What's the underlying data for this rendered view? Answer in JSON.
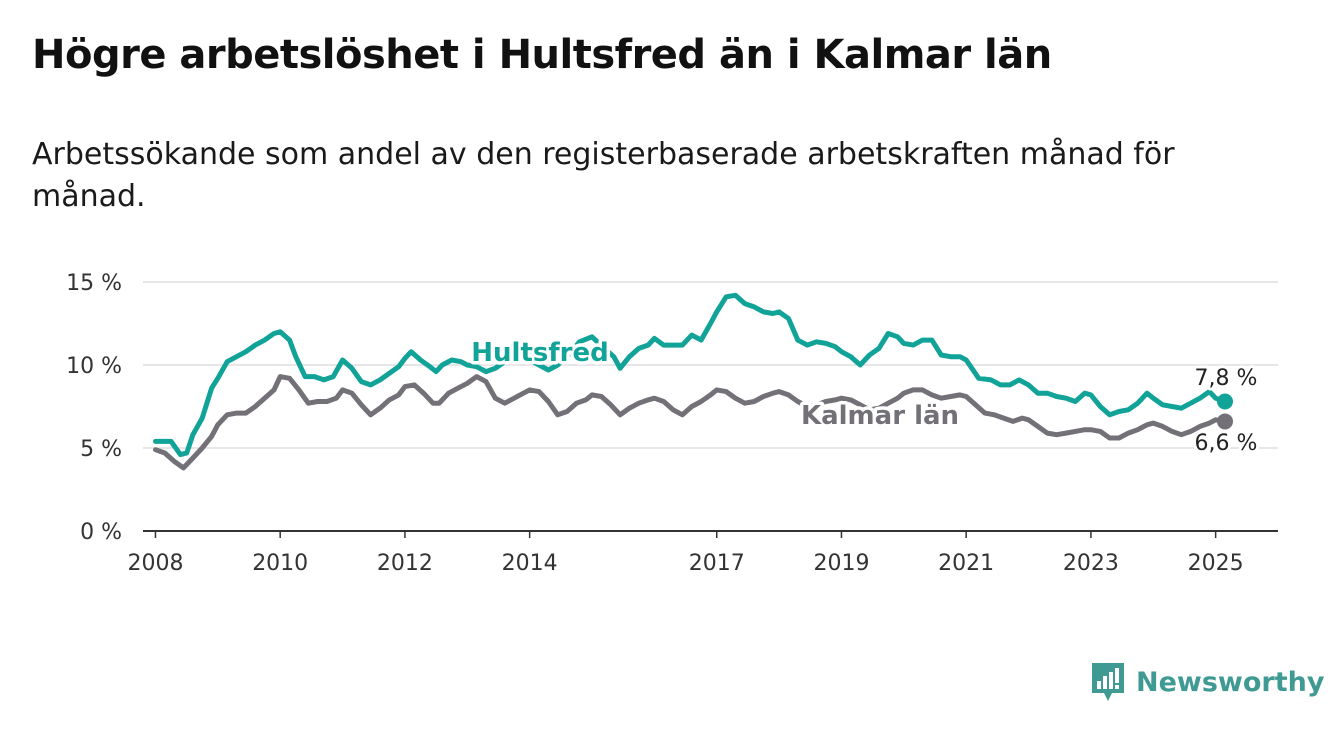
{
  "title": "Högre arbetslöshet i Hultsfred än i Kalmar län",
  "subtitle": "Arbetssökande som andel av den registerbaserade arbetskraften månad för månad.",
  "brand": {
    "name": "Newsworthy",
    "icon": "newsworthy-bar-chart-icon",
    "color": "#3f9a94"
  },
  "colors": {
    "hultsfred": "#12a398",
    "kalmar": "#737078",
    "grid": "#dddddd",
    "axis": "#333333"
  },
  "chart_data": {
    "type": "line",
    "ylim": [
      0,
      15
    ],
    "xlim": [
      2007.8,
      2026.0
    ],
    "y_ticks": [
      {
        "value": 0,
        "label": "0 %"
      },
      {
        "value": 5,
        "label": "5 %"
      },
      {
        "value": 10,
        "label": "10 %"
      },
      {
        "value": 15,
        "label": "15 %"
      }
    ],
    "x_ticks": [
      {
        "value": 2008,
        "label": "2008"
      },
      {
        "value": 2010,
        "label": "2010"
      },
      {
        "value": 2012,
        "label": "2012"
      },
      {
        "value": 2014,
        "label": "2014"
      },
      {
        "value": 2017,
        "label": "2017"
      },
      {
        "value": 2019,
        "label": "2019"
      },
      {
        "value": 2021,
        "label": "2021"
      },
      {
        "value": 2023,
        "label": "2023"
      },
      {
        "value": 2025,
        "label": "2025"
      }
    ],
    "grid": true,
    "series": [
      {
        "name": "Hultsfred",
        "color": "#12a398",
        "end_label": "7,8 %",
        "points": [
          [
            2008.0,
            5.4
          ],
          [
            2008.25,
            5.4
          ],
          [
            2008.4,
            4.6
          ],
          [
            2008.5,
            4.7
          ],
          [
            2008.6,
            5.8
          ],
          [
            2008.75,
            6.8
          ],
          [
            2008.9,
            8.6
          ],
          [
            2009.0,
            9.2
          ],
          [
            2009.15,
            10.2
          ],
          [
            2009.3,
            10.5
          ],
          [
            2009.45,
            10.8
          ],
          [
            2009.6,
            11.2
          ],
          [
            2009.75,
            11.5
          ],
          [
            2009.9,
            11.9
          ],
          [
            2010.0,
            12.0
          ],
          [
            2010.15,
            11.5
          ],
          [
            2010.25,
            10.5
          ],
          [
            2010.4,
            9.3
          ],
          [
            2010.55,
            9.3
          ],
          [
            2010.7,
            9.1
          ],
          [
            2010.85,
            9.3
          ],
          [
            2011.0,
            10.3
          ],
          [
            2011.15,
            9.8
          ],
          [
            2011.3,
            9.0
          ],
          [
            2011.45,
            8.8
          ],
          [
            2011.6,
            9.1
          ],
          [
            2011.75,
            9.5
          ],
          [
            2011.9,
            9.9
          ],
          [
            2012.0,
            10.4
          ],
          [
            2012.1,
            10.8
          ],
          [
            2012.25,
            10.3
          ],
          [
            2012.4,
            9.9
          ],
          [
            2012.5,
            9.6
          ],
          [
            2012.6,
            10.0
          ],
          [
            2012.75,
            10.3
          ],
          [
            2012.9,
            10.2
          ],
          [
            2013.0,
            10.0
          ],
          [
            2013.15,
            9.9
          ],
          [
            2013.3,
            9.6
          ],
          [
            2013.45,
            9.8
          ],
          [
            2013.6,
            10.2
          ],
          [
            2013.75,
            10.4
          ],
          [
            2013.9,
            10.6
          ],
          [
            2014.0,
            10.3
          ],
          [
            2014.15,
            10.0
          ],
          [
            2014.3,
            9.7
          ],
          [
            2014.45,
            10.0
          ],
          [
            2014.6,
            10.5
          ],
          [
            2014.8,
            11.4
          ],
          [
            2015.0,
            11.7
          ],
          [
            2015.2,
            11.0
          ],
          [
            2015.35,
            10.5
          ],
          [
            2015.45,
            9.8
          ],
          [
            2015.6,
            10.5
          ],
          [
            2015.75,
            11.0
          ],
          [
            2015.9,
            11.2
          ],
          [
            2016.0,
            11.6
          ],
          [
            2016.15,
            11.2
          ],
          [
            2016.3,
            11.2
          ],
          [
            2016.45,
            11.2
          ],
          [
            2016.6,
            11.8
          ],
          [
            2016.75,
            11.5
          ],
          [
            2016.9,
            12.5
          ],
          [
            2017.0,
            13.2
          ],
          [
            2017.15,
            14.1
          ],
          [
            2017.3,
            14.2
          ],
          [
            2017.45,
            13.7
          ],
          [
            2017.6,
            13.5
          ],
          [
            2017.75,
            13.2
          ],
          [
            2017.9,
            13.1
          ],
          [
            2018.0,
            13.2
          ],
          [
            2018.15,
            12.8
          ],
          [
            2018.3,
            11.5
          ],
          [
            2018.45,
            11.2
          ],
          [
            2018.6,
            11.4
          ],
          [
            2018.75,
            11.3
          ],
          [
            2018.9,
            11.1
          ],
          [
            2019.0,
            10.8
          ],
          [
            2019.15,
            10.5
          ],
          [
            2019.3,
            10.0
          ],
          [
            2019.45,
            10.6
          ],
          [
            2019.6,
            11.0
          ],
          [
            2019.75,
            11.9
          ],
          [
            2019.9,
            11.7
          ],
          [
            2020.0,
            11.3
          ],
          [
            2020.15,
            11.2
          ],
          [
            2020.3,
            11.5
          ],
          [
            2020.45,
            11.5
          ],
          [
            2020.6,
            10.6
          ],
          [
            2020.75,
            10.5
          ],
          [
            2020.9,
            10.5
          ],
          [
            2021.0,
            10.3
          ],
          [
            2021.2,
            9.2
          ],
          [
            2021.4,
            9.1
          ],
          [
            2021.55,
            8.8
          ],
          [
            2021.7,
            8.8
          ],
          [
            2021.85,
            9.1
          ],
          [
            2022.0,
            8.8
          ],
          [
            2022.15,
            8.3
          ],
          [
            2022.3,
            8.3
          ],
          [
            2022.45,
            8.1
          ],
          [
            2022.6,
            8.0
          ],
          [
            2022.75,
            7.8
          ],
          [
            2022.9,
            8.3
          ],
          [
            2023.0,
            8.2
          ],
          [
            2023.15,
            7.5
          ],
          [
            2023.3,
            7.0
          ],
          [
            2023.45,
            7.2
          ],
          [
            2023.6,
            7.3
          ],
          [
            2023.75,
            7.7
          ],
          [
            2023.9,
            8.3
          ],
          [
            2024.0,
            8.0
          ],
          [
            2024.15,
            7.6
          ],
          [
            2024.3,
            7.5
          ],
          [
            2024.45,
            7.4
          ],
          [
            2024.6,
            7.7
          ],
          [
            2024.75,
            8.0
          ],
          [
            2024.9,
            8.4
          ],
          [
            2025.0,
            8.0
          ],
          [
            2025.15,
            7.8
          ]
        ]
      },
      {
        "name": "Kalmar län",
        "color": "#737078",
        "end_label": "6,6 %",
        "points": [
          [
            2008.0,
            4.9
          ],
          [
            2008.15,
            4.7
          ],
          [
            2008.3,
            4.2
          ],
          [
            2008.45,
            3.8
          ],
          [
            2008.6,
            4.4
          ],
          [
            2008.75,
            5.0
          ],
          [
            2008.9,
            5.7
          ],
          [
            2009.0,
            6.4
          ],
          [
            2009.15,
            7.0
          ],
          [
            2009.3,
            7.1
          ],
          [
            2009.45,
            7.1
          ],
          [
            2009.6,
            7.5
          ],
          [
            2009.75,
            8.0
          ],
          [
            2009.9,
            8.5
          ],
          [
            2010.0,
            9.3
          ],
          [
            2010.15,
            9.2
          ],
          [
            2010.3,
            8.5
          ],
          [
            2010.45,
            7.7
          ],
          [
            2010.6,
            7.8
          ],
          [
            2010.75,
            7.8
          ],
          [
            2010.9,
            8.0
          ],
          [
            2011.0,
            8.5
          ],
          [
            2011.15,
            8.3
          ],
          [
            2011.3,
            7.6
          ],
          [
            2011.45,
            7.0
          ],
          [
            2011.6,
            7.4
          ],
          [
            2011.75,
            7.9
          ],
          [
            2011.9,
            8.2
          ],
          [
            2012.0,
            8.7
          ],
          [
            2012.15,
            8.8
          ],
          [
            2012.3,
            8.3
          ],
          [
            2012.45,
            7.7
          ],
          [
            2012.55,
            7.7
          ],
          [
            2012.7,
            8.3
          ],
          [
            2012.85,
            8.6
          ],
          [
            2013.0,
            8.9
          ],
          [
            2013.15,
            9.3
          ],
          [
            2013.3,
            9.0
          ],
          [
            2013.45,
            8.0
          ],
          [
            2013.6,
            7.7
          ],
          [
            2013.75,
            8.0
          ],
          [
            2013.9,
            8.3
          ],
          [
            2014.0,
            8.5
          ],
          [
            2014.15,
            8.4
          ],
          [
            2014.3,
            7.8
          ],
          [
            2014.45,
            7.0
          ],
          [
            2014.6,
            7.2
          ],
          [
            2014.75,
            7.7
          ],
          [
            2014.9,
            7.9
          ],
          [
            2015.0,
            8.2
          ],
          [
            2015.15,
            8.1
          ],
          [
            2015.3,
            7.6
          ],
          [
            2015.45,
            7.0
          ],
          [
            2015.6,
            7.4
          ],
          [
            2015.75,
            7.7
          ],
          [
            2015.9,
            7.9
          ],
          [
            2016.0,
            8.0
          ],
          [
            2016.15,
            7.8
          ],
          [
            2016.3,
            7.3
          ],
          [
            2016.45,
            7.0
          ],
          [
            2016.6,
            7.5
          ],
          [
            2016.75,
            7.8
          ],
          [
            2016.9,
            8.2
          ],
          [
            2017.0,
            8.5
          ],
          [
            2017.15,
            8.4
          ],
          [
            2017.3,
            8.0
          ],
          [
            2017.45,
            7.7
          ],
          [
            2017.6,
            7.8
          ],
          [
            2017.75,
            8.1
          ],
          [
            2017.9,
            8.3
          ],
          [
            2018.0,
            8.4
          ],
          [
            2018.15,
            8.2
          ],
          [
            2018.3,
            7.8
          ],
          [
            2018.45,
            7.5
          ],
          [
            2018.6,
            7.6
          ],
          [
            2018.75,
            7.8
          ],
          [
            2018.9,
            7.9
          ],
          [
            2019.0,
            8.0
          ],
          [
            2019.15,
            7.9
          ],
          [
            2019.3,
            7.6
          ],
          [
            2019.45,
            7.3
          ],
          [
            2019.6,
            7.4
          ],
          [
            2019.75,
            7.7
          ],
          [
            2019.9,
            8.0
          ],
          [
            2020.0,
            8.3
          ],
          [
            2020.15,
            8.5
          ],
          [
            2020.3,
            8.5
          ],
          [
            2020.45,
            8.2
          ],
          [
            2020.6,
            8.0
          ],
          [
            2020.75,
            8.1
          ],
          [
            2020.9,
            8.2
          ],
          [
            2021.0,
            8.1
          ],
          [
            2021.15,
            7.6
          ],
          [
            2021.3,
            7.1
          ],
          [
            2021.45,
            7.0
          ],
          [
            2021.6,
            6.8
          ],
          [
            2021.75,
            6.6
          ],
          [
            2021.9,
            6.8
          ],
          [
            2022.0,
            6.7
          ],
          [
            2022.15,
            6.3
          ],
          [
            2022.3,
            5.9
          ],
          [
            2022.45,
            5.8
          ],
          [
            2022.6,
            5.9
          ],
          [
            2022.75,
            6.0
          ],
          [
            2022.9,
            6.1
          ],
          [
            2023.0,
            6.1
          ],
          [
            2023.15,
            6.0
          ],
          [
            2023.3,
            5.6
          ],
          [
            2023.45,
            5.6
          ],
          [
            2023.6,
            5.9
          ],
          [
            2023.75,
            6.1
          ],
          [
            2023.9,
            6.4
          ],
          [
            2024.0,
            6.5
          ],
          [
            2024.15,
            6.3
          ],
          [
            2024.3,
            6.0
          ],
          [
            2024.45,
            5.8
          ],
          [
            2024.6,
            6.0
          ],
          [
            2024.75,
            6.3
          ],
          [
            2024.9,
            6.5
          ],
          [
            2025.0,
            6.7
          ],
          [
            2025.15,
            6.6
          ]
        ]
      }
    ]
  }
}
